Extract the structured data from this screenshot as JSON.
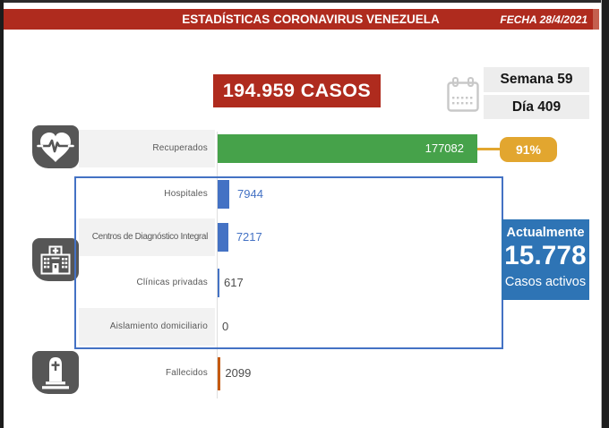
{
  "header": {
    "title": "ESTADÍSTICAS CORONAVIRUS VENEZUELA",
    "date_label": "FECHA 28/4/2021"
  },
  "summary": {
    "total_cases": "194.959 CASOS",
    "week_label": "Semana 59",
    "day_label": "Día 409"
  },
  "active_cases": {
    "heading": "Actualmente",
    "value": "15.778",
    "caption": "Casos activos"
  },
  "chart_data": {
    "type": "bar",
    "orientation": "horizontal",
    "categories": [
      "Recuperados",
      "Hospitales",
      "Centros de Diagnóstico Integral",
      "Clínicas privadas",
      "Aislamiento domiciliario",
      "Fallecidos"
    ],
    "values": [
      177082,
      7944,
      7217,
      617,
      0,
      2099
    ],
    "value_labels": [
      "177082",
      "7944",
      "7217",
      "617",
      "0",
      "2099"
    ],
    "x_max": 177082,
    "grid": false,
    "shaded_rows": [
      0,
      2,
      4
    ],
    "bar_colors": [
      "#46a24a",
      "#4472c4",
      "#4472c4",
      "#4472c4",
      "#4472c4",
      "#c55a11"
    ],
    "value_label_colors": [
      "#ffffff",
      "#4472c4",
      "#4472c4",
      "#4d4d4d",
      "#4d4d4d",
      "#4d4d4d"
    ],
    "annotations": [
      {
        "row": "Recuperados",
        "label": "91%"
      }
    ]
  },
  "colors": {
    "accent_red": "#af2b1e",
    "green": "#46a24a",
    "yellow": "#e2a62f",
    "office_blue": "#4472c4",
    "active_box_blue": "#2e74b5",
    "icon_tile_gray": "#565656"
  }
}
